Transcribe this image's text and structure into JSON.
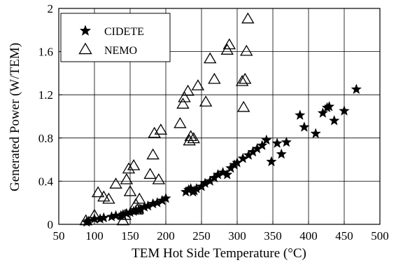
{
  "chart_data": {
    "type": "scatter",
    "title": "",
    "xlabel": "TEM Hot Side Temperature (°C)",
    "ylabel": "Generated Power (W/TEM)",
    "xlim": [
      50,
      500
    ],
    "ylim": [
      0,
      2
    ],
    "xticks": [
      50,
      100,
      150,
      200,
      250,
      300,
      350,
      400,
      450,
      500
    ],
    "xtick_labels": [
      "50",
      "100",
      "150",
      "200",
      "250",
      "300",
      "350",
      "400",
      "450",
      "500"
    ],
    "yticks": [
      0,
      0.4,
      0.8,
      1.2,
      1.6,
      2
    ],
    "ytick_labels": [
      "0",
      "0.4",
      "0.8",
      "1.2",
      "1.6",
      "2"
    ],
    "grid": true,
    "legend": {
      "position": "top-left"
    },
    "colors": {
      "series": "#000000",
      "grid": "#000000",
      "axes": "#000000"
    },
    "series": [
      {
        "name": "CIDETE",
        "marker": "star",
        "points": [
          [
            89,
            0.02
          ],
          [
            92,
            0.03
          ],
          [
            100,
            0.05
          ],
          [
            108,
            0.05
          ],
          [
            113,
            0.06
          ],
          [
            124,
            0.07
          ],
          [
            130,
            0.08
          ],
          [
            137,
            0.08
          ],
          [
            140,
            0.09
          ],
          [
            145,
            0.1
          ],
          [
            150,
            0.11
          ],
          [
            155,
            0.12
          ],
          [
            158,
            0.13
          ],
          [
            162,
            0.13
          ],
          [
            165,
            0.14
          ],
          [
            170,
            0.16
          ],
          [
            175,
            0.17
          ],
          [
            182,
            0.19
          ],
          [
            188,
            0.2
          ],
          [
            195,
            0.22
          ],
          [
            200,
            0.24
          ],
          [
            228,
            0.3
          ],
          [
            232,
            0.32
          ],
          [
            235,
            0.33
          ],
          [
            238,
            0.3
          ],
          [
            240,
            0.31
          ],
          [
            243,
            0.33
          ],
          [
            250,
            0.35
          ],
          [
            255,
            0.38
          ],
          [
            262,
            0.4
          ],
          [
            268,
            0.43
          ],
          [
            273,
            0.46
          ],
          [
            280,
            0.48
          ],
          [
            286,
            0.46
          ],
          [
            291,
            0.52
          ],
          [
            296,
            0.55
          ],
          [
            300,
            0.57
          ],
          [
            308,
            0.61
          ],
          [
            316,
            0.64
          ],
          [
            322,
            0.67
          ],
          [
            328,
            0.7
          ],
          [
            335,
            0.73
          ],
          [
            341,
            0.78
          ],
          [
            348,
            0.58
          ],
          [
            356,
            0.75
          ],
          [
            362,
            0.65
          ],
          [
            369,
            0.76
          ],
          [
            388,
            1.01
          ],
          [
            394,
            0.9
          ],
          [
            410,
            0.84
          ],
          [
            420,
            1.03
          ],
          [
            426,
            1.08
          ],
          [
            429,
            1.09
          ],
          [
            436,
            0.96
          ],
          [
            450,
            1.05
          ],
          [
            467,
            1.25
          ]
        ]
      },
      {
        "name": "NEMO",
        "marker": "triangle-open",
        "points": [
          [
            88,
            0.03
          ],
          [
            100,
            0.08
          ],
          [
            105,
            0.29
          ],
          [
            113,
            0.25
          ],
          [
            120,
            0.23
          ],
          [
            130,
            0.37
          ],
          [
            140,
            0.03
          ],
          [
            143,
            0.08
          ],
          [
            145,
            0.41
          ],
          [
            148,
            0.51
          ],
          [
            150,
            0.3
          ],
          [
            155,
            0.54
          ],
          [
            158,
            0.18
          ],
          [
            160,
            0.13
          ],
          [
            163,
            0.23
          ],
          [
            178,
            0.46
          ],
          [
            182,
            0.64
          ],
          [
            184,
            0.84
          ],
          [
            190,
            0.41
          ],
          [
            193,
            0.87
          ],
          [
            220,
            0.93
          ],
          [
            224,
            1.11
          ],
          [
            226,
            1.17
          ],
          [
            231,
            1.23
          ],
          [
            233,
            0.77
          ],
          [
            235,
            0.81
          ],
          [
            239,
            0.79
          ],
          [
            245,
            1.28
          ],
          [
            256,
            1.13
          ],
          [
            262,
            1.53
          ],
          [
            268,
            1.34
          ],
          [
            286,
            1.61
          ],
          [
            289,
            1.66
          ],
          [
            307,
            1.32
          ],
          [
            309,
            1.08
          ],
          [
            311,
            1.34
          ],
          [
            313,
            1.6
          ],
          [
            315,
            1.9
          ]
        ]
      }
    ]
  }
}
